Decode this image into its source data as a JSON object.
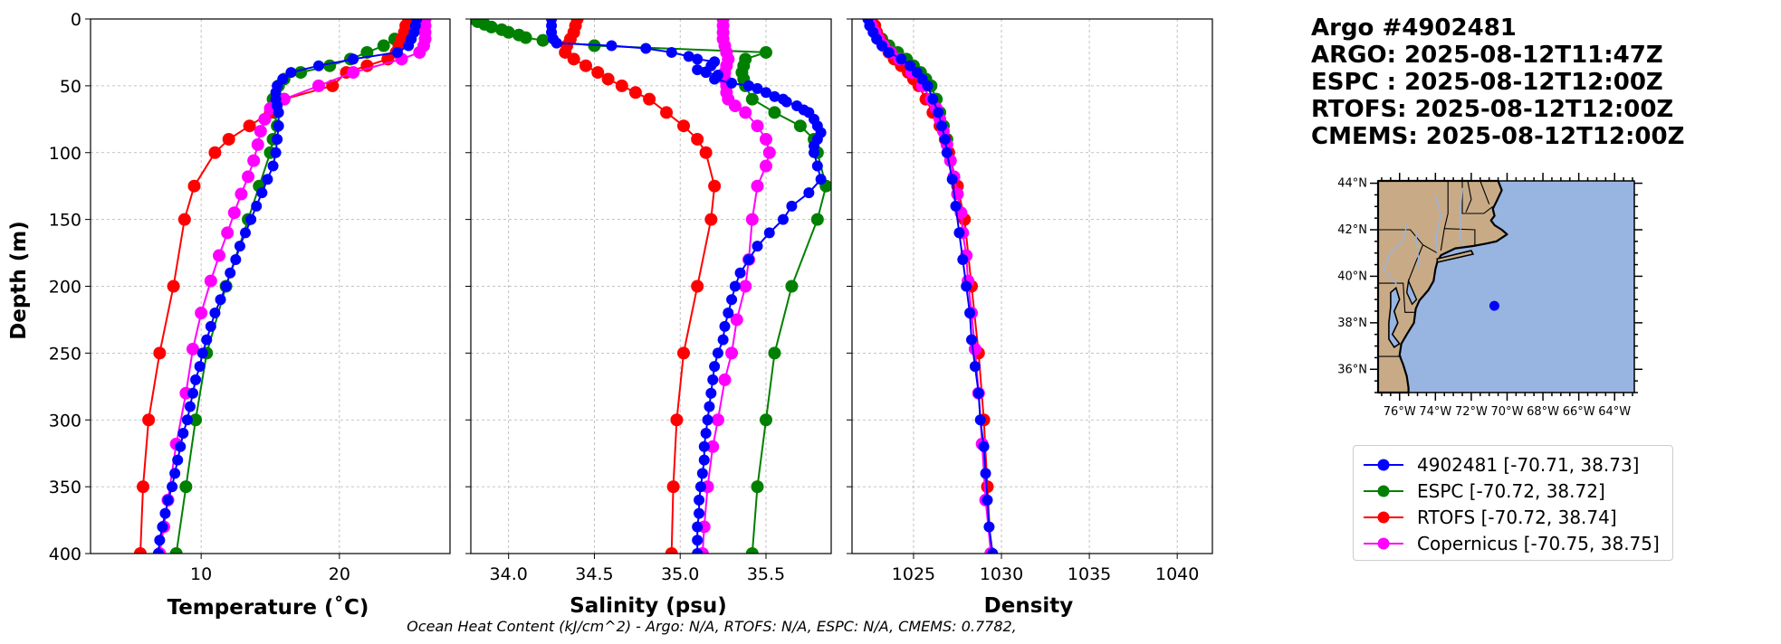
{
  "info": {
    "line1": "Argo #4902481",
    "line2": "ARGO: 2025-08-12T11:47Z",
    "line3": "ESPC : 2025-08-12T12:00Z",
    "line4": "RTOFS: 2025-08-12T12:00Z",
    "line5": "CMEMS: 2025-08-12T12:00Z"
  },
  "footer": "Ocean Heat Content (kJ/cm^2) - Argo: N/A,  RTOFS: N/A,  ESPC: N/A,  CMEMS: 0.7782,",
  "colors": {
    "argo": "#0000ff",
    "espc": "#008000",
    "rtofs": "#ff0000",
    "copernicus": "#ff00ff",
    "land": "#c8ab86",
    "ocean": "#98b4e1"
  },
  "legend": [
    {
      "label": "4902481 [-70.71, 38.73]",
      "color": "#0000ff"
    },
    {
      "label": "ESPC [-70.72, 38.72]",
      "color": "#008000"
    },
    {
      "label": "RTOFS [-70.72, 38.74]",
      "color": "#ff0000"
    },
    {
      "label": "Copernicus [-70.75, 38.75]",
      "color": "#ff00ff"
    }
  ],
  "map": {
    "lat_labels": [
      "44°N",
      "42°N",
      "40°N",
      "38°N",
      "36°N"
    ],
    "lat_values": [
      44,
      42,
      40,
      38,
      36
    ],
    "lon_labels": [
      "76°W",
      "74°W",
      "72°W",
      "70°W",
      "68°W",
      "66°W",
      "64°W"
    ],
    "lon_values": [
      -76,
      -74,
      -72,
      -70,
      -68,
      -66,
      -64
    ],
    "lon_range": [
      -77.2,
      -62.9
    ],
    "lat_range": [
      35.0,
      44.1
    ],
    "float_position": {
      "lon": -70.71,
      "lat": 38.73
    }
  },
  "chart_data": [
    {
      "type": "line",
      "title": "",
      "xlabel": "Temperature (˚C)",
      "ylabel": "Depth (m)",
      "xlim": [
        2,
        28
      ],
      "ylim": [
        400,
        0
      ],
      "xticks": [
        10,
        20
      ],
      "xtick_labels": [
        "10",
        "20"
      ],
      "yticks": [
        0,
        50,
        100,
        150,
        200,
        250,
        300,
        350,
        400
      ],
      "ytick_labels": [
        "0",
        "50",
        "100",
        "150",
        "200",
        "250",
        "300",
        "350",
        "400"
      ],
      "series": [
        {
          "name": "4902481",
          "color": "#0000ff",
          "marker_size": 6,
          "line_width": 2,
          "depth": [
            0,
            5,
            10,
            15,
            20,
            25,
            30,
            35,
            40,
            45,
            50,
            55,
            60,
            65,
            70,
            80,
            90,
            100,
            110,
            120,
            130,
            140,
            150,
            160,
            170,
            180,
            190,
            200,
            210,
            220,
            230,
            240,
            250,
            260,
            270,
            280,
            290,
            300,
            310,
            320,
            330,
            340,
            350,
            360,
            370,
            380,
            390,
            400
          ],
          "values": [
            25.6,
            25.5,
            25.4,
            25.2,
            25.0,
            24.2,
            21.0,
            18.5,
            16.5,
            15.9,
            15.5,
            15.4,
            15.4,
            15.5,
            15.6,
            15.6,
            15.5,
            15.4,
            15.2,
            14.8,
            14.4,
            14.0,
            13.6,
            13.2,
            12.8,
            12.5,
            12.1,
            11.8,
            11.4,
            11.0,
            10.7,
            10.4,
            10.1,
            9.9,
            9.6,
            9.4,
            9.2,
            9.0,
            8.7,
            8.5,
            8.3,
            8.1,
            7.9,
            7.6,
            7.4,
            7.2,
            7.0,
            6.9
          ]
        },
        {
          "name": "ESPC",
          "color": "#008000",
          "marker_size": 7,
          "line_width": 2,
          "depth": [
            0,
            5,
            10,
            15,
            20,
            25,
            30,
            35,
            40,
            45,
            50,
            60,
            70,
            80,
            90,
            100,
            125,
            150,
            200,
            250,
            300,
            350,
            400
          ],
          "values": [
            25.8,
            25.7,
            24.8,
            24.0,
            23.2,
            22.0,
            20.8,
            19.3,
            17.2,
            16.0,
            15.6,
            15.2,
            15.3,
            15.5,
            15.2,
            15.0,
            14.2,
            13.4,
            11.8,
            10.4,
            9.6,
            8.9,
            8.2
          ]
        },
        {
          "name": "RTOFS",
          "color": "#ff0000",
          "marker_size": 7,
          "line_width": 2,
          "depth": [
            0,
            5,
            10,
            15,
            20,
            25,
            30,
            35,
            40,
            50,
            60,
            70,
            80,
            90,
            100,
            125,
            150,
            200,
            250,
            300,
            350,
            400
          ],
          "values": [
            25.0,
            24.8,
            24.7,
            24.5,
            24.3,
            24.1,
            23.5,
            22.0,
            20.5,
            19.5,
            16.0,
            15.0,
            13.5,
            12.0,
            11.0,
            9.5,
            8.8,
            8.0,
            7.0,
            6.2,
            5.8,
            5.6
          ]
        },
        {
          "name": "Copernicus",
          "color": "#ff00ff",
          "marker_size": 7,
          "line_width": 2,
          "depth": [
            0,
            5,
            10,
            15,
            20,
            25,
            30,
            40,
            50,
            60,
            67,
            75,
            84,
            94,
            106,
            118,
            131,
            145,
            160,
            177,
            196,
            220,
            247,
            280,
            318,
            360,
            380,
            400
          ],
          "values": [
            26.2,
            26.2,
            26.2,
            26.2,
            26.1,
            25.8,
            24.5,
            21.0,
            18.5,
            16.0,
            15.0,
            14.6,
            14.3,
            14.1,
            13.8,
            13.4,
            12.9,
            12.4,
            11.9,
            11.3,
            10.7,
            10.0,
            9.4,
            8.9,
            8.2,
            7.6,
            7.3,
            7.0
          ]
        }
      ]
    },
    {
      "type": "line",
      "title": "",
      "xlabel": "Salinity (psu)",
      "ylabel": "",
      "xlim": [
        33.78,
        35.88
      ],
      "ylim": [
        400,
        0
      ],
      "xticks": [
        34.0,
        34.5,
        35.0,
        35.5
      ],
      "xtick_labels": [
        "34.0",
        "34.5",
        "35.0",
        "35.5"
      ],
      "series": [
        {
          "name": "4902481",
          "color": "#0000ff",
          "marker_size": 6,
          "line_width": 2,
          "depth": [
            0,
            5,
            10,
            15,
            18,
            20,
            22,
            25,
            28,
            30,
            32,
            35,
            38,
            40,
            42,
            45,
            48,
            50,
            52,
            55,
            58,
            60,
            62,
            65,
            68,
            70,
            75,
            80,
            85,
            90,
            95,
            100,
            110,
            120,
            130,
            140,
            150,
            160,
            170,
            180,
            190,
            200,
            210,
            220,
            230,
            240,
            250,
            260,
            270,
            280,
            290,
            300,
            310,
            320,
            330,
            340,
            350,
            360,
            370,
            380,
            390,
            400
          ],
          "values": [
            34.25,
            34.25,
            34.25,
            34.26,
            34.28,
            34.6,
            34.8,
            34.95,
            35.05,
            35.1,
            35.2,
            35.18,
            35.1,
            35.15,
            35.22,
            35.2,
            35.3,
            35.4,
            35.45,
            35.5,
            35.55,
            35.6,
            35.62,
            35.68,
            35.72,
            35.75,
            35.78,
            35.8,
            35.82,
            35.8,
            35.78,
            35.78,
            35.8,
            35.82,
            35.75,
            35.65,
            35.6,
            35.52,
            35.45,
            35.4,
            35.35,
            35.32,
            35.3,
            35.28,
            35.26,
            35.25,
            35.22,
            35.2,
            35.19,
            35.18,
            35.17,
            35.16,
            35.15,
            35.14,
            35.14,
            35.13,
            35.12,
            35.11,
            35.11,
            35.1,
            35.1,
            35.1
          ]
        },
        {
          "name": "ESPC",
          "color": "#008000",
          "marker_size": 7,
          "line_width": 2,
          "depth": [
            0,
            2,
            4,
            6,
            8,
            10,
            12,
            14,
            16,
            20,
            25,
            30,
            35,
            40,
            45,
            50,
            60,
            70,
            80,
            90,
            100,
            125,
            150,
            200,
            250,
            300,
            350,
            400
          ],
          "values": [
            33.8,
            33.82,
            33.86,
            33.9,
            33.96,
            34.0,
            34.06,
            34.1,
            34.2,
            34.5,
            35.5,
            35.38,
            35.37,
            35.36,
            35.37,
            35.38,
            35.42,
            35.55,
            35.7,
            35.78,
            35.8,
            35.85,
            35.8,
            35.65,
            35.55,
            35.5,
            35.45,
            35.42
          ]
        },
        {
          "name": "RTOFS",
          "color": "#ff0000",
          "marker_size": 7,
          "line_width": 2,
          "depth": [
            0,
            5,
            10,
            15,
            20,
            25,
            30,
            35,
            40,
            45,
            50,
            55,
            60,
            70,
            80,
            90,
            100,
            125,
            150,
            200,
            250,
            300,
            350,
            400
          ],
          "values": [
            34.4,
            34.39,
            34.38,
            34.36,
            34.34,
            34.33,
            34.38,
            34.45,
            34.52,
            34.58,
            34.66,
            34.74,
            34.82,
            34.92,
            35.02,
            35.1,
            35.15,
            35.2,
            35.18,
            35.1,
            35.02,
            34.98,
            34.96,
            34.95
          ]
        },
        {
          "name": "Copernicus",
          "color": "#ff00ff",
          "marker_size": 7,
          "line_width": 2,
          "depth": [
            0,
            5,
            10,
            15,
            20,
            25,
            30,
            35,
            40,
            45,
            50,
            55,
            60,
            65,
            70,
            80,
            90,
            100,
            110,
            125,
            150,
            180,
            200,
            225,
            250,
            270,
            300,
            320,
            350,
            380,
            400
          ],
          "values": [
            35.25,
            35.25,
            35.25,
            35.25,
            35.26,
            35.27,
            35.28,
            35.27,
            35.26,
            35.26,
            35.27,
            35.27,
            35.28,
            35.32,
            35.38,
            35.45,
            35.5,
            35.52,
            35.5,
            35.45,
            35.42,
            35.4,
            35.38,
            35.33,
            35.3,
            35.26,
            35.22,
            35.19,
            35.16,
            35.14,
            35.13
          ]
        }
      ]
    },
    {
      "type": "line",
      "title": "",
      "xlabel": "Density",
      "ylabel": "",
      "xlim": [
        1021.5,
        1042.0
      ],
      "ylim": [
        400,
        0
      ],
      "xticks": [
        1025,
        1030,
        1035,
        1040
      ],
      "xtick_labels": [
        "1025",
        "1030",
        "1035",
        "1040"
      ],
      "series": [
        {
          "name": "4902481",
          "color": "#0000ff",
          "marker_size": 6,
          "line_width": 2,
          "depth": [
            0,
            5,
            10,
            15,
            20,
            25,
            30,
            35,
            40,
            45,
            50,
            60,
            70,
            80,
            90,
            100,
            120,
            140,
            160,
            180,
            200,
            220,
            240,
            260,
            280,
            300,
            320,
            340,
            360,
            380,
            400
          ],
          "values": [
            1022.4,
            1022.5,
            1022.7,
            1022.9,
            1023.2,
            1023.6,
            1024.3,
            1024.8,
            1025.2,
            1025.5,
            1025.8,
            1026.1,
            1026.4,
            1026.6,
            1026.8,
            1026.9,
            1027.2,
            1027.4,
            1027.6,
            1027.8,
            1028.0,
            1028.2,
            1028.3,
            1028.5,
            1028.7,
            1028.8,
            1029.0,
            1029.1,
            1029.2,
            1029.3,
            1029.5
          ]
        },
        {
          "name": "ESPC",
          "color": "#008000",
          "marker_size": 7,
          "line_width": 2,
          "depth": [
            0,
            5,
            10,
            15,
            20,
            25,
            30,
            35,
            40,
            45,
            50,
            60,
            70,
            80,
            90,
            100
          ],
          "values": [
            1022.6,
            1022.7,
            1022.9,
            1023.2,
            1023.6,
            1024.1,
            1024.6,
            1025.0,
            1025.4,
            1025.7,
            1026.0,
            1026.3,
            1026.5,
            1026.7,
            1026.9,
            1027.0
          ]
        },
        {
          "name": "RTOFS",
          "color": "#ff0000",
          "marker_size": 7,
          "line_width": 2,
          "depth": [
            0,
            5,
            10,
            15,
            20,
            25,
            30,
            35,
            40,
            45,
            50,
            60,
            70,
            80,
            90,
            100,
            125,
            150,
            200,
            250,
            300,
            350,
            400
          ],
          "values": [
            1022.6,
            1022.8,
            1022.9,
            1023.1,
            1023.3,
            1023.6,
            1023.9,
            1024.3,
            1024.7,
            1025.0,
            1025.3,
            1025.7,
            1026.1,
            1026.5,
            1026.8,
            1027.0,
            1027.5,
            1027.9,
            1028.3,
            1028.7,
            1029.0,
            1029.2,
            1029.4
          ]
        },
        {
          "name": "Copernicus",
          "color": "#ff00ff",
          "marker_size": 7,
          "line_width": 2,
          "depth": [
            0,
            5,
            10,
            15,
            20,
            25,
            30,
            40,
            50,
            60,
            67,
            75,
            84,
            94,
            106,
            118,
            131,
            145,
            160,
            177,
            196,
            220,
            247,
            280,
            318,
            360,
            400
          ],
          "values": [
            1022.5,
            1022.6,
            1022.8,
            1023.0,
            1023.3,
            1023.7,
            1024.2,
            1024.9,
            1025.5,
            1026.0,
            1026.3,
            1026.5,
            1026.7,
            1026.9,
            1027.1,
            1027.3,
            1027.5,
            1027.7,
            1027.8,
            1028.0,
            1028.1,
            1028.3,
            1028.5,
            1028.7,
            1028.9,
            1029.1,
            1029.4
          ]
        }
      ]
    }
  ]
}
